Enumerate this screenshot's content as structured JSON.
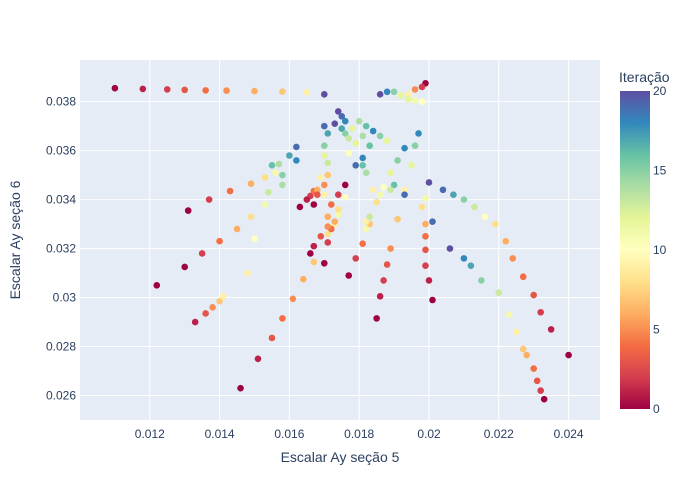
{
  "chart_data": {
    "type": "scatter",
    "title": "",
    "xlabel": "Escalar Ay seção 5",
    "ylabel": "Escalar Ay seção 6",
    "xlim": [
      0.01,
      0.0249
    ],
    "ylim": [
      0.025,
      0.0397
    ],
    "x_ticks": [
      "0.012",
      "0.014",
      "0.016",
      "0.018",
      "0.02",
      "0.022",
      "0.024"
    ],
    "x_tick_values": [
      0.012,
      0.014,
      0.016,
      0.018,
      0.02,
      0.022,
      0.024
    ],
    "y_ticks": [
      "0.026",
      "0.028",
      "0.03",
      "0.032",
      "0.034",
      "0.036",
      "0.038"
    ],
    "y_tick_values": [
      0.026,
      0.028,
      0.03,
      0.032,
      0.034,
      0.036,
      0.038
    ],
    "grid": true,
    "background": "#e5ecf6",
    "gridcolor": "#ffffff",
    "colorbar": {
      "title": "Iteração",
      "min": 0,
      "max": 20,
      "ticks": [
        "0",
        "5",
        "10",
        "15",
        "20"
      ],
      "tick_values": [
        0,
        5,
        10,
        15,
        20
      ],
      "colorscale": [
        "#9e0142",
        "#d53e4f",
        "#f46d43",
        "#fdae61",
        "#fee08b",
        "#ffffbf",
        "#e6f598",
        "#abdda4",
        "#66c2a5",
        "#3288bd",
        "#5e4fa2"
      ]
    },
    "series": [
      {
        "points": [
          [
            0.011,
            0.03855,
            0
          ],
          [
            0.0118,
            0.03852,
            1
          ],
          [
            0.0125,
            0.0385,
            2
          ],
          [
            0.013,
            0.03848,
            3
          ],
          [
            0.0136,
            0.03846,
            4
          ],
          [
            0.0142,
            0.03845,
            5
          ],
          [
            0.015,
            0.03843,
            6
          ],
          [
            0.0158,
            0.03841,
            7
          ],
          [
            0.0165,
            0.03838,
            9
          ],
          [
            0.017,
            0.0383,
            20
          ]
        ]
      },
      {
        "points": [
          [
            0.0199,
            0.03875,
            0
          ],
          [
            0.0198,
            0.0386,
            2
          ],
          [
            0.0196,
            0.0385,
            5
          ],
          [
            0.0194,
            0.0383,
            9
          ],
          [
            0.0192,
            0.03825,
            12
          ],
          [
            0.019,
            0.0384,
            15
          ],
          [
            0.0188,
            0.0384,
            18
          ],
          [
            0.0186,
            0.0383,
            20
          ]
        ]
      },
      {
        "points": [
          [
            0.0131,
            0.03355,
            0
          ],
          [
            0.0137,
            0.034,
            2
          ],
          [
            0.0143,
            0.03435,
            4
          ],
          [
            0.0149,
            0.03465,
            6
          ],
          [
            0.0153,
            0.0349,
            8
          ],
          [
            0.0156,
            0.0351,
            11
          ],
          [
            0.0157,
            0.03545,
            14
          ],
          [
            0.016,
            0.0358,
            17
          ],
          [
            0.0162,
            0.03615,
            19
          ]
        ]
      },
      {
        "points": [
          [
            0.013,
            0.03125,
            0
          ],
          [
            0.0135,
            0.0318,
            2
          ],
          [
            0.014,
            0.0323,
            4
          ],
          [
            0.0145,
            0.0328,
            6
          ],
          [
            0.0149,
            0.0333,
            8
          ],
          [
            0.0153,
            0.0338,
            11
          ],
          [
            0.0158,
            0.0346,
            14
          ],
          [
            0.0162,
            0.0356,
            18
          ]
        ]
      },
      {
        "points": [
          [
            0.0122,
            0.0305,
            0
          ],
          [
            0.0133,
            0.029,
            1
          ],
          [
            0.0136,
            0.02935,
            3
          ],
          [
            0.0138,
            0.0296,
            5
          ],
          [
            0.014,
            0.02985,
            7
          ],
          [
            0.0141,
            0.03005,
            9
          ]
        ]
      },
      {
        "points": [
          [
            0.0146,
            0.0263,
            0
          ],
          [
            0.0151,
            0.0275,
            1
          ],
          [
            0.0155,
            0.02835,
            3
          ],
          [
            0.0158,
            0.02915,
            4
          ],
          [
            0.0161,
            0.02995,
            5
          ],
          [
            0.0164,
            0.03075,
            6
          ],
          [
            0.0167,
            0.03145,
            7
          ],
          [
            0.0171,
            0.0326,
            8
          ],
          [
            0.0173,
            0.033,
            9
          ],
          [
            0.0174,
            0.0334,
            11
          ]
        ]
      },
      {
        "points": [
          [
            0.0177,
            0.0309,
            0
          ],
          [
            0.0179,
            0.0316,
            2
          ],
          [
            0.0181,
            0.0322,
            4
          ],
          [
            0.0183,
            0.033,
            6
          ],
          [
            0.0185,
            0.0339,
            8
          ],
          [
            0.0187,
            0.0345,
            10
          ],
          [
            0.0189,
            0.0351,
            12
          ],
          [
            0.0191,
            0.0356,
            15
          ],
          [
            0.0193,
            0.0361,
            18
          ]
        ]
      },
      {
        "points": [
          [
            0.0185,
            0.02915,
            0
          ],
          [
            0.0186,
            0.03005,
            1
          ],
          [
            0.0187,
            0.0307,
            2
          ],
          [
            0.0188,
            0.03135,
            3
          ],
          [
            0.0189,
            0.032,
            5
          ],
          [
            0.0191,
            0.0332,
            7
          ],
          [
            0.0193,
            0.0344,
            9
          ],
          [
            0.0195,
            0.0354,
            12
          ],
          [
            0.0196,
            0.0362,
            15
          ],
          [
            0.0197,
            0.0367,
            18
          ]
        ]
      },
      {
        "points": [
          [
            0.0201,
            0.0299,
            0
          ],
          [
            0.02,
            0.0307,
            1
          ],
          [
            0.0199,
            0.0313,
            2
          ],
          [
            0.0199,
            0.03195,
            3
          ],
          [
            0.0199,
            0.0325,
            4
          ],
          [
            0.0199,
            0.033,
            6
          ],
          [
            0.0198,
            0.0337,
            8
          ],
          [
            0.0199,
            0.03405,
            11
          ],
          [
            0.0201,
            0.0331,
            19
          ],
          [
            0.02,
            0.0347,
            20
          ]
        ]
      },
      {
        "points": [
          [
            0.024,
            0.02765,
            0
          ],
          [
            0.0235,
            0.0287,
            1
          ],
          [
            0.0232,
            0.0294,
            2
          ],
          [
            0.023,
            0.0301,
            3
          ],
          [
            0.0227,
            0.03085,
            4
          ],
          [
            0.0224,
            0.0316,
            5
          ],
          [
            0.0222,
            0.0323,
            6
          ],
          [
            0.0219,
            0.033,
            8
          ],
          [
            0.0216,
            0.0333,
            10
          ],
          [
            0.0213,
            0.0337,
            13
          ],
          [
            0.021,
            0.034,
            15
          ],
          [
            0.0207,
            0.0342,
            17
          ],
          [
            0.0204,
            0.0344,
            19
          ]
        ]
      },
      {
        "points": [
          [
            0.0233,
            0.02585,
            0
          ],
          [
            0.0232,
            0.0262,
            2
          ],
          [
            0.0231,
            0.0266,
            3
          ],
          [
            0.023,
            0.0271,
            4
          ],
          [
            0.0228,
            0.02765,
            6
          ],
          [
            0.0227,
            0.0279,
            7
          ],
          [
            0.0225,
            0.0286,
            9
          ],
          [
            0.0223,
            0.0293,
            11
          ],
          [
            0.022,
            0.0302,
            13
          ],
          [
            0.0215,
            0.0307,
            15
          ],
          [
            0.0212,
            0.0313,
            17
          ],
          [
            0.021,
            0.0316,
            18
          ],
          [
            0.0206,
            0.032,
            20
          ]
        ]
      },
      {
        "points": [
          [
            0.0176,
            0.0346,
            0
          ],
          [
            0.0174,
            0.0342,
            2
          ],
          [
            0.0172,
            0.0338,
            4
          ],
          [
            0.0171,
            0.0333,
            6
          ],
          [
            0.017,
            0.0342,
            9
          ],
          [
            0.0171,
            0.035,
            11
          ],
          [
            0.0171,
            0.0355,
            13
          ],
          [
            0.017,
            0.0362,
            15
          ],
          [
            0.0171,
            0.0367,
            17
          ],
          [
            0.017,
            0.037,
            19
          ]
        ]
      },
      {
        "points": [
          [
            0.0167,
            0.0338,
            0
          ],
          [
            0.0166,
            0.03415,
            2
          ],
          [
            0.0167,
            0.03435,
            4
          ],
          [
            0.0168,
            0.0344,
            6
          ],
          [
            0.0169,
            0.0349,
            9
          ],
          [
            0.017,
            0.0358,
            12
          ]
        ]
      },
      {
        "points": [
          [
            0.0163,
            0.0337,
            0
          ],
          [
            0.0165,
            0.034,
            1
          ],
          [
            0.0168,
            0.0342,
            3
          ],
          [
            0.017,
            0.0346,
            5
          ],
          [
            0.0171,
            0.035,
            7
          ]
        ]
      },
      {
        "points": [
          [
            0.0177,
            0.0359,
            10
          ],
          [
            0.0179,
            0.0363,
            12
          ],
          [
            0.0181,
            0.0366,
            14
          ],
          [
            0.0183,
            0.0362,
            16
          ],
          [
            0.0181,
            0.0357,
            18
          ],
          [
            0.0179,
            0.0354,
            19
          ]
        ]
      },
      {
        "points": [
          [
            0.0174,
            0.0376,
            20
          ],
          [
            0.0175,
            0.0374,
            19
          ],
          [
            0.0176,
            0.0372,
            18
          ],
          [
            0.0173,
            0.0371,
            20
          ],
          [
            0.0175,
            0.0369,
            17
          ],
          [
            0.0176,
            0.0367,
            15
          ],
          [
            0.0177,
            0.0365,
            13
          ],
          [
            0.0178,
            0.0369,
            12
          ],
          [
            0.018,
            0.0372,
            14
          ],
          [
            0.0182,
            0.037,
            16
          ],
          [
            0.0184,
            0.0368,
            18
          ],
          [
            0.0186,
            0.0366,
            15
          ],
          [
            0.0188,
            0.0364,
            12
          ]
        ]
      },
      {
        "points": [
          [
            0.017,
            0.0314,
            0
          ],
          [
            0.0171,
            0.03225,
            2
          ],
          [
            0.0172,
            0.0328,
            4
          ],
          [
            0.0173,
            0.0331,
            6
          ],
          [
            0.0174,
            0.0336,
            8
          ],
          [
            0.0176,
            0.0341,
            10
          ]
        ]
      },
      {
        "points": [
          [
            0.0166,
            0.0318,
            0
          ],
          [
            0.0167,
            0.0321,
            1
          ],
          [
            0.0169,
            0.0325,
            3
          ],
          [
            0.0171,
            0.0329,
            5
          ]
        ]
      },
      {
        "points": [
          [
            0.0183,
            0.033,
            7
          ],
          [
            0.0182,
            0.0331,
            9
          ],
          [
            0.0182,
            0.0328,
            11
          ],
          [
            0.0183,
            0.0333,
            13
          ],
          [
            0.0181,
            0.0354,
            16
          ],
          [
            0.0182,
            0.0351,
            14
          ]
        ]
      },
      {
        "points": [
          [
            0.0155,
            0.0354,
            16
          ],
          [
            0.0158,
            0.035,
            15
          ],
          [
            0.0154,
            0.0343,
            13
          ],
          [
            0.015,
            0.0324,
            10
          ],
          [
            0.0148,
            0.031,
            9
          ]
        ]
      },
      {
        "points": [
          [
            0.0198,
            0.038,
            10
          ],
          [
            0.0196,
            0.03805,
            11
          ],
          [
            0.0194,
            0.0381,
            12
          ]
        ]
      },
      {
        "points": [
          [
            0.0193,
            0.0342,
            19
          ],
          [
            0.019,
            0.0346,
            16
          ],
          [
            0.0189,
            0.0344,
            13
          ],
          [
            0.0186,
            0.0342,
            11
          ],
          [
            0.0184,
            0.0344,
            9
          ]
        ]
      }
    ]
  }
}
